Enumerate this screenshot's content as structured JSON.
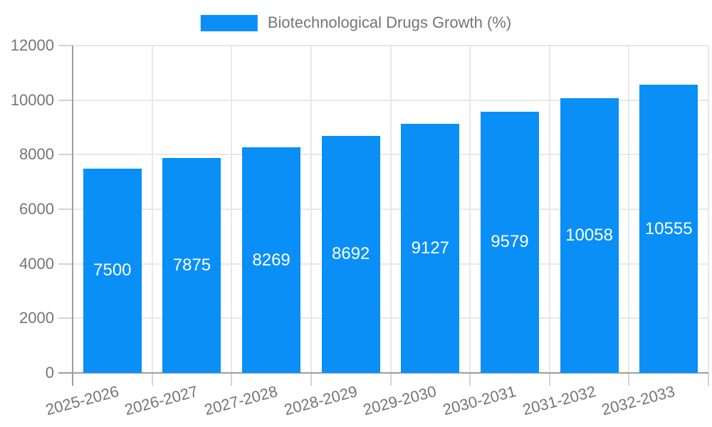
{
  "legend": {
    "label": "Biotechnological Drugs Growth (%)"
  },
  "colors": {
    "bar": "#0a8ff7",
    "gridline": "#e8e8e8",
    "tick": "#d4d4d4",
    "axis_line": "#9e9e9e",
    "axis_text": "#757575",
    "bar_label_text": "#ffffff",
    "legend_text": "#757575",
    "background": "#ffffff"
  },
  "chart_data": {
    "type": "bar",
    "title": "Biotechnological Drugs Growth (%)",
    "categories": [
      "2025-2026",
      "2026-2027",
      "2027-2028",
      "2028-2029",
      "2029-2030",
      "2030-2031",
      "2031-2032",
      "2032-2033"
    ],
    "values": [
      7500,
      7875,
      8269,
      8692,
      9127,
      9579,
      10058,
      10555
    ],
    "xlabel": "",
    "ylabel": "",
    "ylim": [
      0,
      12000
    ],
    "ytick_step": 2000,
    "yticks": [
      0,
      2000,
      4000,
      6000,
      8000,
      10000,
      12000
    ],
    "grid": true,
    "legend_position": "top-center",
    "bar_value_labels": "inside-center",
    "x_tick_rotation_deg": -15
  }
}
